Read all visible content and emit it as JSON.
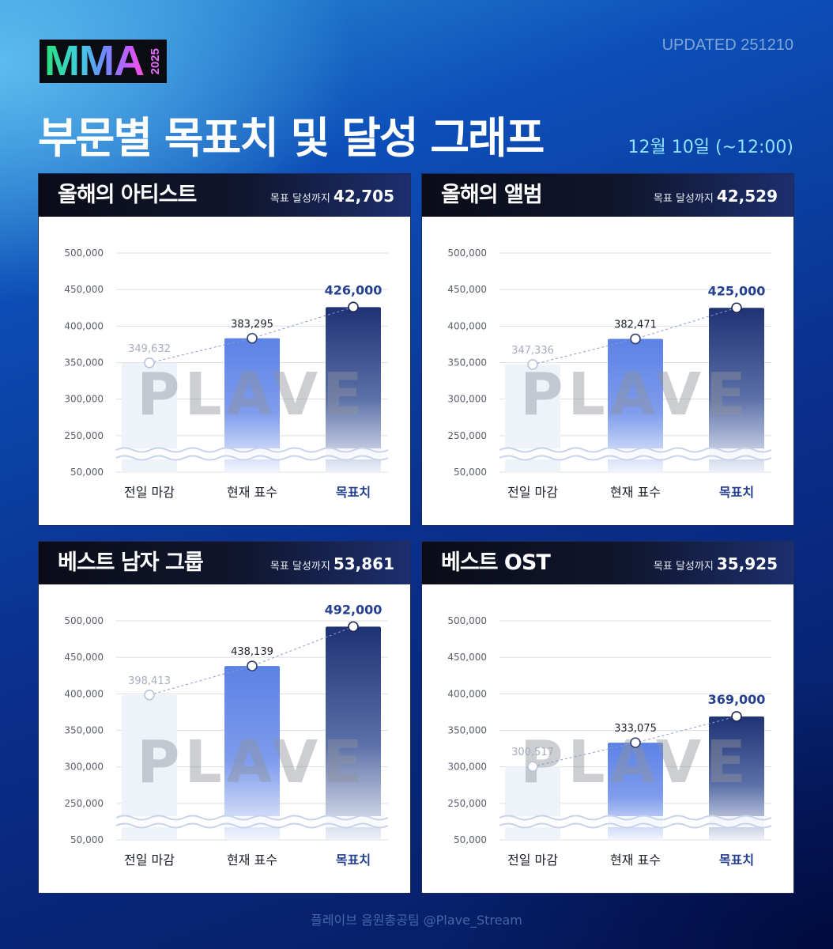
{
  "header": {
    "logo_text": "MMA",
    "logo_year": "2025",
    "updated": "UPDATED 251210",
    "title": "부문별 목표치 및 달성 그래프",
    "date": "12월 10일 (~12:00)"
  },
  "footer": "플레이브 음원총공팀 @Plave_Stream",
  "watermark": "PLAVE",
  "colors": {
    "previous_bar": "#eef2f9",
    "current_bar": "#5b82e6",
    "target_bar": "#1f3273",
    "target_text": "#24408f",
    "grid": "#dcdfe6"
  },
  "panels": [
    {
      "title": "올해의 아티스트",
      "remain_label": "목표 달성까지",
      "remain_value": "42,705",
      "chart_data": {
        "type": "bar",
        "categories": [
          "전일 마감",
          "현재 표수",
          "목표치"
        ],
        "values": [
          349632,
          383295,
          426000
        ],
        "value_labels": [
          "349,632",
          "383,295",
          "426,000"
        ],
        "yticks": [
          "500,000",
          "450,000",
          "400,000",
          "350,000",
          "300,000",
          "250,000",
          "50,000"
        ],
        "ytick_values": [
          500000,
          450000,
          400000,
          350000,
          300000,
          250000,
          200000
        ],
        "ylim": [
          200000,
          500000
        ],
        "axis_break": true,
        "grid": true
      }
    },
    {
      "title": "올해의 앨범",
      "remain_label": "목표 달성까지",
      "remain_value": "42,529",
      "chart_data": {
        "type": "bar",
        "categories": [
          "전일 마감",
          "현재 표수",
          "목표치"
        ],
        "values": [
          347336,
          382471,
          425000
        ],
        "value_labels": [
          "347,336",
          "382,471",
          "425,000"
        ],
        "yticks": [
          "500,000",
          "450,000",
          "400,000",
          "350,000",
          "300,000",
          "250,000",
          "50,000"
        ],
        "ytick_values": [
          500000,
          450000,
          400000,
          350000,
          300000,
          250000,
          200000
        ],
        "ylim": [
          200000,
          500000
        ],
        "axis_break": true,
        "grid": true
      }
    },
    {
      "title": "베스트 남자 그룹",
      "remain_label": "목표 달성까지",
      "remain_value": "53,861",
      "chart_data": {
        "type": "bar",
        "categories": [
          "전일 마감",
          "현재 표수",
          "목표치"
        ],
        "values": [
          398413,
          438139,
          492000
        ],
        "value_labels": [
          "398,413",
          "438,139",
          "492,000"
        ],
        "yticks": [
          "500,000",
          "450,000",
          "400,000",
          "350,000",
          "300,000",
          "250,000",
          "50,000"
        ],
        "ytick_values": [
          500000,
          450000,
          400000,
          350000,
          300000,
          250000,
          200000
        ],
        "ylim": [
          200000,
          500000
        ],
        "axis_break": true,
        "grid": true
      }
    },
    {
      "title": "베스트 OST",
      "remain_label": "목표 달성까지",
      "remain_value": "35,925",
      "chart_data": {
        "type": "bar",
        "categories": [
          "전일 마감",
          "현재 표수",
          "목표치"
        ],
        "values": [
          300517,
          333075,
          369000
        ],
        "value_labels": [
          "300,517",
          "333,075",
          "369,000"
        ],
        "yticks": [
          "500,000",
          "450,000",
          "400,000",
          "350,000",
          "300,000",
          "250,000",
          "50,000"
        ],
        "ytick_values": [
          500000,
          450000,
          400000,
          350000,
          300000,
          250000,
          200000
        ],
        "ylim": [
          200000,
          500000
        ],
        "axis_break": true,
        "grid": true
      }
    }
  ]
}
